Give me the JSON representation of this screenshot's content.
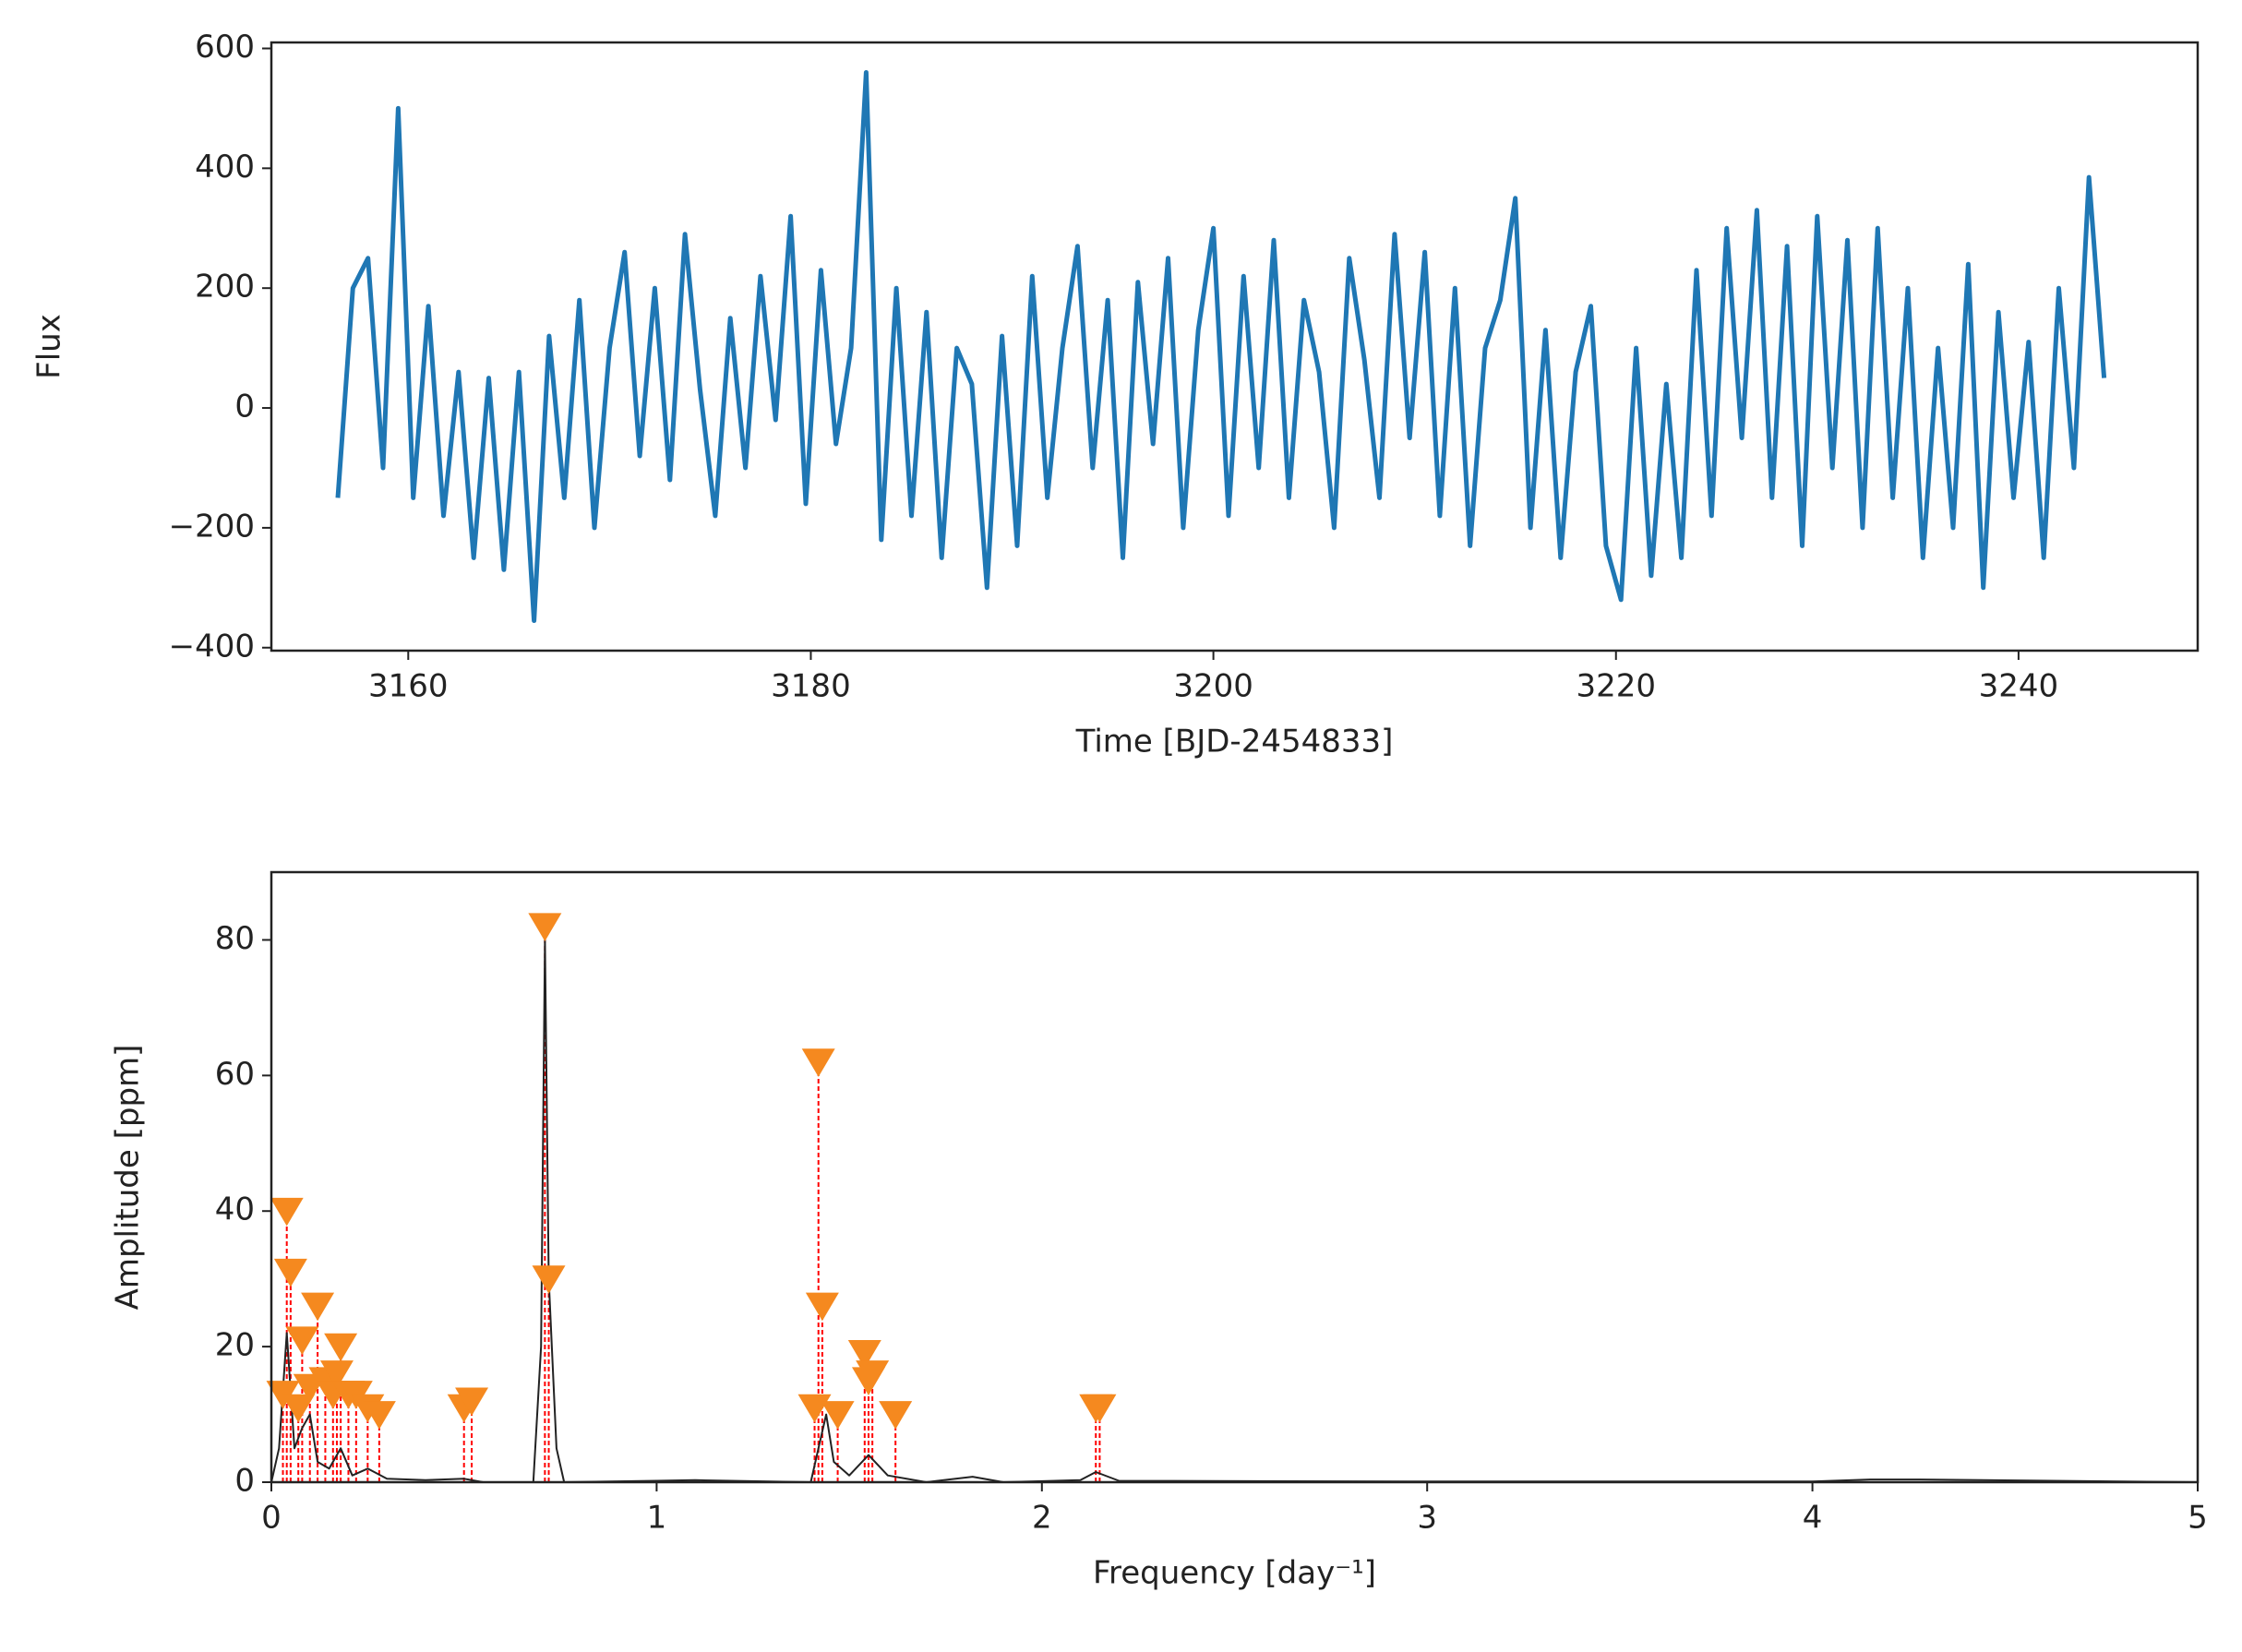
{
  "chart_data": [
    {
      "type": "line",
      "xlabel": "Time [BJD-2454833]",
      "ylabel": "Flux",
      "color": "#1f77b4",
      "xlim": [
        3153.2,
        3248.9
      ],
      "ylim": [
        -405,
        610
      ],
      "xticks": [
        3160,
        3180,
        3200,
        3220,
        3240
      ],
      "yticks": [
        {
          "value": -400,
          "label": "−400"
        },
        {
          "value": -200,
          "label": "−200"
        },
        0,
        200,
        400,
        600
      ],
      "x": [
        3156.5,
        3157.25,
        3158,
        3158.75,
        3159.5,
        3160.25,
        3161,
        3161.75,
        3162.5,
        3163.25,
        3164,
        3164.75,
        3165.5,
        3166.25,
        3167,
        3167.75,
        3168.5,
        3169.25,
        3170,
        3170.75,
        3171.5,
        3172.25,
        3173,
        3173.75,
        3174.5,
        3175.25,
        3176,
        3176.75,
        3177.5,
        3178.25,
        3179,
        3179.75,
        3180.5,
        3181.25,
        3182,
        3182.75,
        3183.5,
        3184.25,
        3185,
        3185.75,
        3186.5,
        3187.25,
        3188,
        3188.75,
        3189.5,
        3190.25,
        3191,
        3191.75,
        3192.5,
        3193.25,
        3194,
        3194.75,
        3195.5,
        3196.25,
        3197,
        3197.75,
        3198.5,
        3199.25,
        3200,
        3200.75,
        3201.5,
        3202.25,
        3203,
        3203.75,
        3204.5,
        3205.25,
        3206,
        3206.75,
        3207.5,
        3208.25,
        3209,
        3209.75,
        3210.5,
        3211.25,
        3212,
        3212.75,
        3213.5,
        3214.25,
        3215,
        3215.75,
        3216.5,
        3217.25,
        3218,
        3218.75,
        3219.5,
        3220.25,
        3221,
        3221.75,
        3222.5,
        3223.25,
        3224,
        3224.75,
        3225.5,
        3226.25,
        3227,
        3227.75,
        3228.5,
        3229.25,
        3230,
        3230.75,
        3231.5,
        3232.25,
        3233,
        3233.75,
        3234.5,
        3235.25,
        3236,
        3236.75,
        3237.5,
        3238.25,
        3239,
        3239.75,
        3240.5,
        3241.25,
        3242,
        3242.75,
        3243.5,
        3244.25
      ],
      "values": [
        -150,
        200,
        250,
        -100,
        500,
        -150,
        170,
        -180,
        60,
        -250,
        50,
        -270,
        60,
        -355,
        120,
        -150,
        180,
        -200,
        100,
        260,
        -80,
        200,
        -120,
        290,
        30,
        -180,
        150,
        -100,
        220,
        -20,
        320,
        -160,
        230,
        -60,
        100,
        560,
        -220,
        200,
        -180,
        160,
        -250,
        100,
        40,
        -300,
        120,
        -230,
        220,
        -150,
        100,
        270,
        -100,
        180,
        -250,
        210,
        -60,
        250,
        -200,
        130,
        300,
        -180,
        220,
        -100,
        280,
        -150,
        180,
        60,
        -200,
        250,
        80,
        -150,
        290,
        -50,
        260,
        -180,
        200,
        -230,
        100,
        180,
        350,
        -200,
        130,
        -250,
        60,
        170,
        -230,
        -320,
        100,
        -280,
        40,
        -250,
        230,
        -180,
        300,
        -50,
        330,
        -150,
        270,
        -230,
        320,
        -100,
        280,
        -200,
        300,
        -150,
        200,
        -250,
        100,
        -200,
        240,
        -300,
        160,
        -150,
        110,
        -250,
        200,
        -100,
        385,
        50
      ]
    },
    {
      "type": "line",
      "xlabel": "Frequency [day⁻¹]",
      "ylabel": "Amplitude [ppm]",
      "color": "#222222",
      "xlim": [
        0,
        5
      ],
      "ylim": [
        0,
        90
      ],
      "xticks": [
        0,
        1,
        2,
        3,
        4,
        5
      ],
      "yticks": [
        0,
        20,
        40,
        60,
        80
      ],
      "x": [
        0,
        0.02,
        0.04,
        0.06,
        0.08,
        0.1,
        0.12,
        0.15,
        0.18,
        0.21,
        0.25,
        0.3,
        0.4,
        0.5,
        0.55,
        0.68,
        0.7,
        0.71,
        0.72,
        0.74,
        0.76,
        1.0,
        1.1,
        1.4,
        1.42,
        1.44,
        1.46,
        1.5,
        1.55,
        1.6,
        1.7,
        1.82,
        1.9,
        2.1,
        2.14,
        2.2,
        3,
        4,
        4.15,
        4.28,
        5
      ],
      "values": [
        0,
        5,
        22,
        5,
        8,
        10,
        3,
        2,
        5,
        1,
        2,
        0.5,
        0.3,
        0.5,
        0,
        0,
        20,
        80,
        30,
        5,
        0,
        0.2,
        0.3,
        0,
        5,
        10,
        3,
        1,
        4,
        1,
        0,
        0.8,
        0,
        0.3,
        1.5,
        0.2,
        0.1,
        0.1,
        0.4,
        0.4,
        0
      ],
      "peaks": {
        "color": "#f5891f",
        "line_color": "#ff0000",
        "x": [
          0.04,
          0.03,
          0.05,
          0.07,
          0.08,
          0.1,
          0.12,
          0.14,
          0.16,
          0.17,
          0.18,
          0.2,
          0.22,
          0.25,
          0.28,
          0.5,
          0.52,
          0.71,
          0.72,
          1.42,
          1.41,
          1.43,
          1.47,
          1.54,
          1.55,
          1.56,
          1.62,
          2.14,
          2.15
        ],
        "values": [
          40,
          13,
          31,
          11,
          21,
          14,
          26,
          15,
          13,
          16,
          20,
          13,
          13,
          11,
          10,
          11,
          12,
          82,
          30,
          62,
          11,
          26,
          10,
          19,
          15,
          16,
          10,
          11,
          11
        ]
      }
    }
  ]
}
